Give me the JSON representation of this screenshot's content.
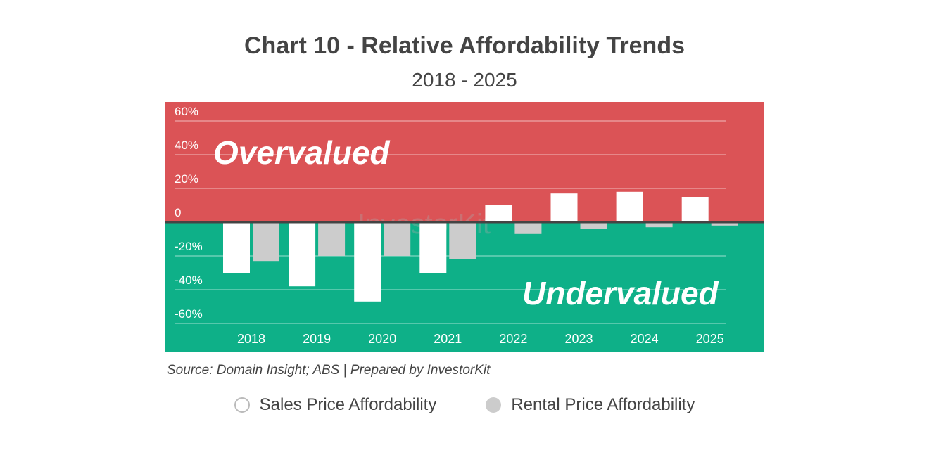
{
  "chart_data": {
    "type": "bar",
    "title": "Chart 10 - Relative Affordability Trends",
    "subtitle": "2018 - 2025",
    "categories": [
      "2018",
      "2019",
      "2020",
      "2021",
      "2022",
      "2023",
      "2024",
      "2025"
    ],
    "series": [
      {
        "name": "Sales Price Affordability",
        "color": "#ffffff",
        "values": [
          -30,
          -38,
          -47,
          -30,
          10,
          17,
          18,
          15
        ]
      },
      {
        "name": "Rental Price Affordability",
        "color": "#cccccc",
        "values": [
          -23,
          -20,
          -20,
          -22,
          -7,
          -4,
          -3,
          -2
        ]
      }
    ],
    "yticks": [
      {
        "v": 60,
        "label": "60%"
      },
      {
        "v": 40,
        "label": "40%"
      },
      {
        "v": 20,
        "label": "20%"
      },
      {
        "v": 0,
        "label": "0"
      },
      {
        "v": -20,
        "label": "-20%"
      },
      {
        "v": -40,
        "label": "-40%"
      },
      {
        "v": -60,
        "label": "-60%"
      }
    ],
    "ylim": [
      -75,
      70
    ],
    "grid": true,
    "legend": "bottom",
    "zones": {
      "over_label": "Overvalued",
      "under_label": "Undervalued",
      "over_color": "#db5356",
      "under_color": "#0eb088"
    },
    "source": "Source: Domain Insight; ABS | Prepared by InvestorKit",
    "watermark": "InvestorKit"
  }
}
